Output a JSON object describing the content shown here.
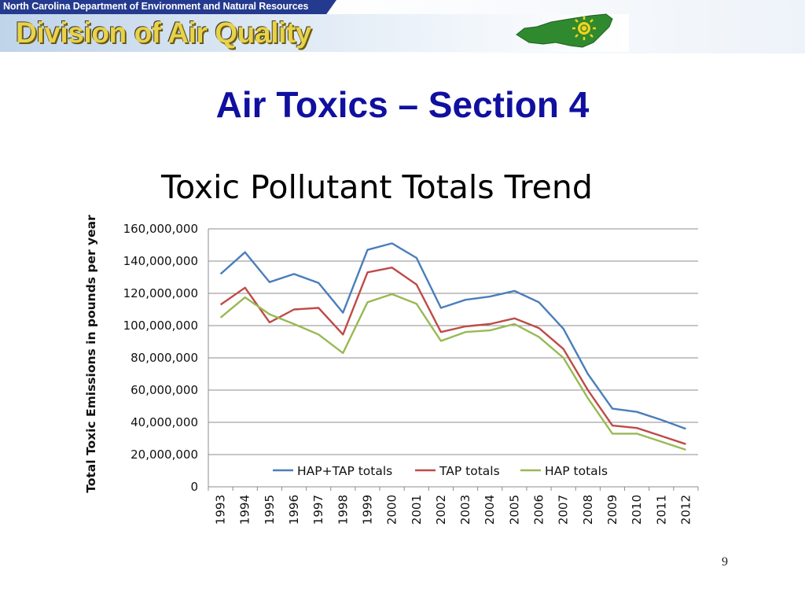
{
  "header": {
    "agency": "North Carolina Department of Environment and Natural Resources",
    "division": "Division of Air Quality",
    "logo_icon": "nc-state-sun-icon"
  },
  "slide": {
    "title": "Air Toxics – Section 4",
    "page_number": "9"
  },
  "colors": {
    "hap_tap": "#4a7ebb",
    "tap": "#be4b48",
    "hap": "#98b954",
    "title": "#1010a0"
  },
  "chart_data": {
    "type": "line",
    "title": "Toxic Pollutant Totals Trend",
    "ylabel": "Total Toxic Emissions in pounds per year",
    "xlabel": "",
    "ylim": [
      0,
      160000000
    ],
    "yticks": [
      "0",
      "20,000,000",
      "40,000,000",
      "60,000,000",
      "80,000,000",
      "100,000,000",
      "120,000,000",
      "140,000,000",
      "160,000,000"
    ],
    "grid": true,
    "legend_position": "inside-bottom",
    "categories": [
      "1993",
      "1994",
      "1995",
      "1996",
      "1997",
      "1998",
      "1999",
      "2000",
      "2001",
      "2002",
      "2003",
      "2004",
      "2005",
      "2006",
      "2007",
      "2008",
      "2009",
      "2010",
      "2011",
      "2012"
    ],
    "series": [
      {
        "name": "HAP+TAP totals",
        "color": "#4a7ebb",
        "values": [
          132000000,
          145500000,
          127000000,
          132000000,
          126500000,
          108000000,
          147000000,
          151000000,
          142000000,
          111000000,
          116000000,
          118000000,
          121500000,
          114500000,
          98000000,
          70000000,
          48500000,
          46500000,
          41500000,
          36000000
        ]
      },
      {
        "name": "TAP totals",
        "color": "#be4b48",
        "values": [
          113000000,
          123500000,
          102000000,
          110000000,
          111000000,
          94500000,
          133000000,
          136000000,
          125500000,
          96000000,
          99500000,
          101000000,
          104500000,
          98500000,
          85500000,
          60000000,
          38000000,
          36500000,
          31500000,
          26500000
        ]
      },
      {
        "name": "HAP totals",
        "color": "#98b954",
        "values": [
          105000000,
          117500000,
          107000000,
          101000000,
          94500000,
          83000000,
          114500000,
          119500000,
          113500000,
          90500000,
          96000000,
          97000000,
          101000000,
          93000000,
          80000000,
          55000000,
          33000000,
          33000000,
          28000000,
          23000000
        ]
      }
    ]
  }
}
